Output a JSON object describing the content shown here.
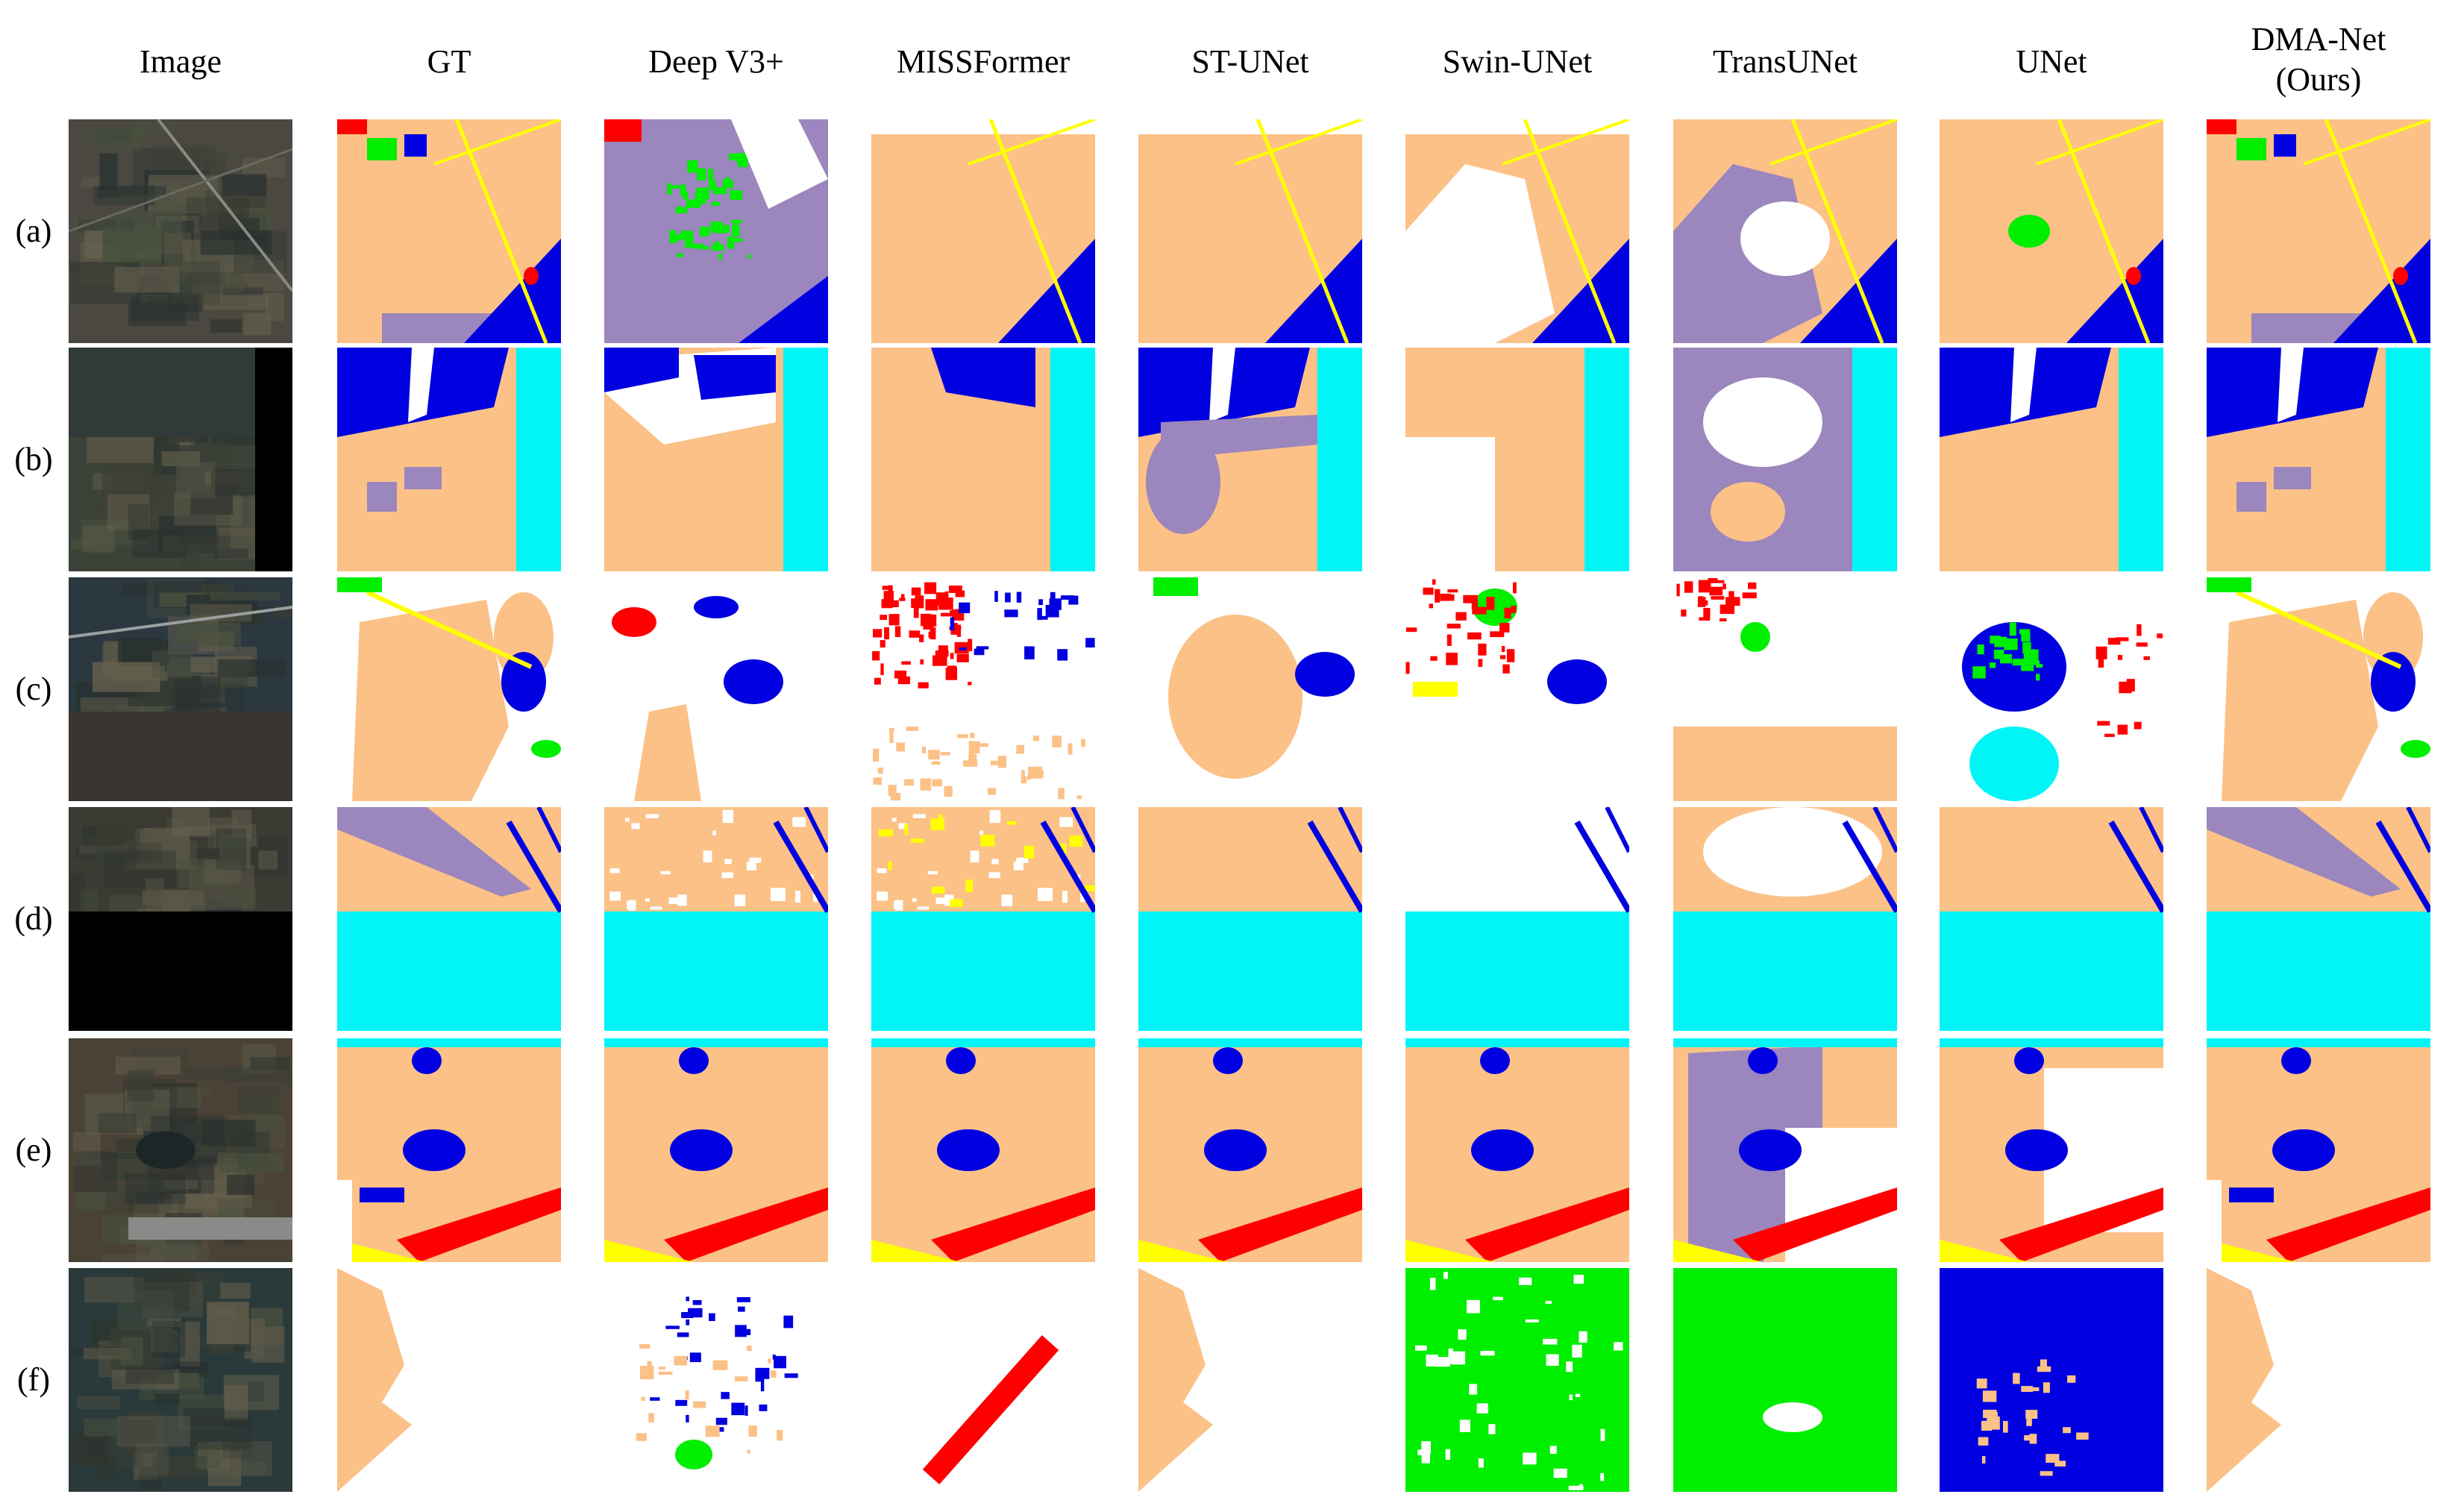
{
  "figure": {
    "column_headers": [
      "Image",
      "GT",
      "Deep V3+",
      "MISSFormer",
      "ST-UNet",
      "Swin-UNet",
      "TransUNet",
      "UNet",
      "DMA-Net\n(Ours)"
    ],
    "row_labels": [
      "(a)",
      "(b)",
      "(c)",
      "(d)",
      "(e)",
      "(f)"
    ],
    "legend_colors": {
      "background": "#ffffff",
      "farmland": "#fbc187",
      "water": "#0000e0",
      "river_sea": "#00f6f6",
      "road": "#ffff00",
      "building": "#ff0000",
      "vegetation": "#00ee00",
      "bare_soil": "#9b86bd"
    },
    "satellite_palette": {
      "a": "#4a4840",
      "b": "#3d4238",
      "c": "#2c3840",
      "d": "#3b3a33",
      "e": "#4a4236",
      "f": "#2a3a3a"
    }
  }
}
